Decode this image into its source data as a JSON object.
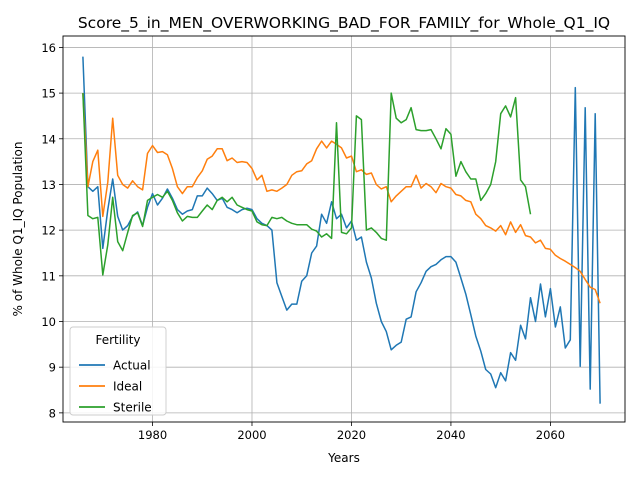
{
  "chart_data": {
    "type": "line",
    "title": "Score_5_in_MEN_OVERWORKING_BAD_FOR_FAMILY_for_Whole_Q1_IQ",
    "xlabel": "Years",
    "ylabel": "% of Whole Q1_IQ Population",
    "xlim": [
      1962,
      2075
    ],
    "ylim": [
      7.8,
      16.25
    ],
    "xticks": [
      1980,
      2000,
      2020,
      2040,
      2060
    ],
    "yticks": [
      8,
      9,
      10,
      11,
      12,
      13,
      14,
      15,
      16
    ],
    "grid": true,
    "legend": {
      "title": "Fertility",
      "position": "lower-left"
    },
    "series": [
      {
        "name": "Actual",
        "color": "#1f77b4",
        "x": [
          1966,
          1967,
          1968,
          1969,
          1970,
          1971,
          1972,
          1973,
          1974,
          1975,
          1976,
          1977,
          1978,
          1979,
          1980,
          1981,
          1982,
          1983,
          1984,
          1985,
          1986,
          1987,
          1988,
          1989,
          1990,
          1991,
          1992,
          1993,
          1994,
          1995,
          1996,
          1997,
          1998,
          1999,
          2000,
          2001,
          2002,
          2003,
          2004,
          2005,
          2006,
          2007,
          2008,
          2009,
          2010,
          2011,
          2012,
          2013,
          2014,
          2015,
          2016,
          2017,
          2018,
          2019,
          2020,
          2021,
          2022,
          2023,
          2024,
          2025,
          2026,
          2027,
          2028,
          2029,
          2030,
          2031,
          2032,
          2033,
          2034,
          2035,
          2036,
          2037,
          2038,
          2039,
          2040,
          2041,
          2042,
          2043,
          2044,
          2045,
          2046,
          2047,
          2048,
          2049,
          2050,
          2051,
          2052,
          2053,
          2054,
          2055,
          2056,
          2057,
          2058,
          2059,
          2060,
          2061,
          2062,
          2063,
          2064,
          2065,
          2066,
          2067,
          2068,
          2069,
          2070
        ],
        "y": [
          15.8,
          12.95,
          12.85,
          12.95,
          11.6,
          12.45,
          13.12,
          12.3,
          12.0,
          12.1,
          12.3,
          12.4,
          12.1,
          12.5,
          12.8,
          12.55,
          12.7,
          12.9,
          12.7,
          12.45,
          12.35,
          12.42,
          12.45,
          12.75,
          12.75,
          12.92,
          12.8,
          12.65,
          12.7,
          12.5,
          12.45,
          12.38,
          12.45,
          12.48,
          12.45,
          12.25,
          12.15,
          12.1,
          12.0,
          10.85,
          10.55,
          10.25,
          10.38,
          10.38,
          10.88,
          11.0,
          11.5,
          11.65,
          12.35,
          12.15,
          12.62,
          12.25,
          12.35,
          12.05,
          12.2,
          11.78,
          11.85,
          11.3,
          10.95,
          10.4,
          10.0,
          9.78,
          9.38,
          9.48,
          9.55,
          10.05,
          10.1,
          10.65,
          10.85,
          11.1,
          11.2,
          11.25,
          11.35,
          11.42,
          11.42,
          11.3,
          10.95,
          10.6,
          10.15,
          9.68,
          9.35,
          8.95,
          8.85,
          8.55,
          8.88,
          8.7,
          9.32,
          9.15,
          9.92,
          9.62,
          10.52,
          10.0,
          10.82,
          10.1,
          10.72,
          9.88,
          10.32,
          9.42,
          9.6,
          15.12,
          9.02,
          14.68,
          8.52,
          14.55,
          8.2
        ]
      },
      {
        "name": "Ideal",
        "color": "#ff7f0e",
        "x": [
          1966,
          1967,
          1968,
          1969,
          1970,
          1971,
          1972,
          1973,
          1974,
          1975,
          1976,
          1977,
          1978,
          1979,
          1980,
          1981,
          1982,
          1983,
          1984,
          1985,
          1986,
          1987,
          1988,
          1989,
          1990,
          1991,
          1992,
          1993,
          1994,
          1995,
          1996,
          1997,
          1998,
          1999,
          2000,
          2001,
          2002,
          2003,
          2004,
          2005,
          2006,
          2007,
          2008,
          2009,
          2010,
          2011,
          2012,
          2013,
          2014,
          2015,
          2016,
          2017,
          2018,
          2019,
          2020,
          2021,
          2022,
          2023,
          2024,
          2025,
          2026,
          2027,
          2028,
          2029,
          2030,
          2031,
          2032,
          2033,
          2034,
          2035,
          2036,
          2037,
          2038,
          2039,
          2040,
          2041,
          2042,
          2043,
          2044,
          2045,
          2046,
          2047,
          2048,
          2049,
          2050,
          2051,
          2052,
          2053,
          2054,
          2055,
          2056,
          2057,
          2058,
          2059,
          2060,
          2061,
          2062,
          2063,
          2064,
          2065,
          2066,
          2067,
          2068,
          2069,
          2070
        ],
        "y": [
          15.0,
          12.95,
          13.5,
          13.75,
          12.3,
          13.05,
          14.45,
          13.2,
          13.0,
          12.92,
          13.08,
          12.95,
          12.88,
          13.68,
          13.85,
          13.7,
          13.72,
          13.65,
          13.35,
          12.95,
          12.8,
          12.95,
          12.95,
          13.15,
          13.3,
          13.55,
          13.62,
          13.78,
          13.78,
          13.52,
          13.58,
          13.48,
          13.5,
          13.48,
          13.35,
          13.1,
          13.2,
          12.85,
          12.88,
          12.85,
          12.92,
          13.0,
          13.2,
          13.28,
          13.3,
          13.45,
          13.52,
          13.78,
          13.95,
          13.8,
          13.95,
          13.88,
          13.8,
          13.58,
          13.62,
          13.28,
          13.32,
          13.22,
          13.25,
          13.0,
          12.9,
          12.95,
          12.62,
          12.75,
          12.85,
          12.95,
          12.95,
          13.2,
          12.92,
          13.02,
          12.95,
          12.82,
          13.02,
          12.95,
          12.92,
          12.78,
          12.75,
          12.65,
          12.62,
          12.35,
          12.25,
          12.1,
          12.05,
          11.98,
          12.1,
          11.9,
          12.18,
          11.95,
          12.12,
          11.88,
          11.85,
          11.72,
          11.78,
          11.6,
          11.58,
          11.45,
          11.38,
          11.32,
          11.25,
          11.18,
          11.1,
          10.92,
          10.75,
          10.7,
          10.4
        ]
      },
      {
        "name": "Sterile",
        "color": "#2ca02c",
        "x": [
          1966,
          1967,
          1968,
          1969,
          1970,
          1971,
          1972,
          1973,
          1974,
          1975,
          1976,
          1977,
          1978,
          1979,
          1980,
          1981,
          1982,
          1983,
          1984,
          1985,
          1986,
          1987,
          1988,
          1989,
          1990,
          1991,
          1992,
          1993,
          1994,
          1995,
          1996,
          1997,
          1998,
          1999,
          2000,
          2001,
          2002,
          2003,
          2004,
          2005,
          2006,
          2007,
          2008,
          2009,
          2010,
          2011,
          2012,
          2013,
          2014,
          2015,
          2016,
          2017,
          2018,
          2019,
          2020,
          2021,
          2022,
          2023,
          2024,
          2025,
          2026,
          2027,
          2028,
          2029,
          2030,
          2031,
          2032,
          2033,
          2034,
          2035,
          2036,
          2037,
          2038,
          2039,
          2040,
          2041,
          2042,
          2043,
          2044,
          2045,
          2046,
          2047,
          2048,
          2049,
          2050,
          2051,
          2052,
          2053,
          2054,
          2055,
          2056
        ],
        "y": [
          15.0,
          12.32,
          12.25,
          12.28,
          11.02,
          11.68,
          12.72,
          11.75,
          11.55,
          11.95,
          12.32,
          12.38,
          12.08,
          12.65,
          12.72,
          12.78,
          12.72,
          12.85,
          12.65,
          12.38,
          12.2,
          12.3,
          12.28,
          12.28,
          12.42,
          12.55,
          12.45,
          12.65,
          12.72,
          12.62,
          12.72,
          12.55,
          12.5,
          12.45,
          12.42,
          12.18,
          12.12,
          12.1,
          12.28,
          12.25,
          12.28,
          12.2,
          12.15,
          12.12,
          12.12,
          12.12,
          12.02,
          11.98,
          11.85,
          11.92,
          11.82,
          14.35,
          11.95,
          11.92,
          12.05,
          14.5,
          14.42,
          12.0,
          12.05,
          11.95,
          11.82,
          11.78,
          15.0,
          14.45,
          14.35,
          14.42,
          14.68,
          14.2,
          14.18,
          14.18,
          14.2,
          14.0,
          13.78,
          14.22,
          14.1,
          13.18,
          13.5,
          13.28,
          13.12,
          13.12,
          12.65,
          12.8,
          13.0,
          13.5,
          14.55,
          14.72,
          14.48,
          14.9,
          13.1,
          12.95,
          12.35
        ]
      }
    ]
  }
}
